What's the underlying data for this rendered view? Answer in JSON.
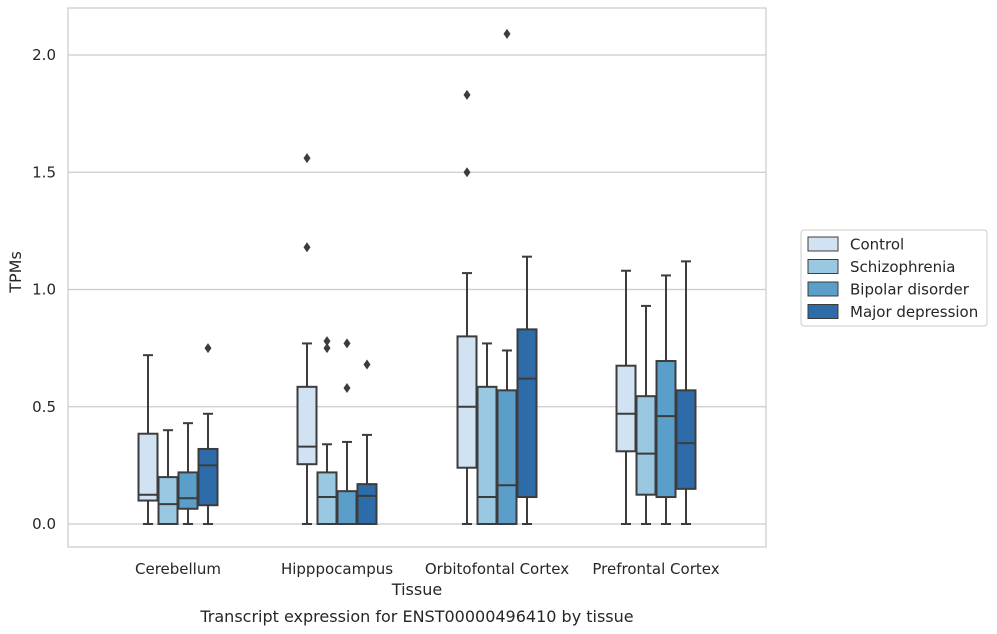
{
  "caption": "Transcript expression for ENST00000496410 by tissue",
  "chart_data": {
    "type": "boxplot",
    "xlabel": "Tissue",
    "ylabel": "TPMs",
    "ylim": [
      -0.1,
      2.2
    ],
    "yticks": [
      "0.0",
      "0.5",
      "1.0",
      "1.5",
      "2.0"
    ],
    "grid": true,
    "legend_position": "right",
    "categories": [
      "Cerebellum",
      "Hipppocampus",
      "Orbitofontal Cortex",
      "Prefrontal Cortex"
    ],
    "series": [
      {
        "name": "Control",
        "color": "#d1e2f2",
        "boxes": [
          {
            "whislo": 0.0,
            "q1": 0.1,
            "med": 0.125,
            "q3": 0.385,
            "whishi": 0.72,
            "fliers": []
          },
          {
            "whislo": 0.0,
            "q1": 0.255,
            "med": 0.33,
            "q3": 0.585,
            "whishi": 0.77,
            "fliers": [
              1.18,
              1.56
            ]
          },
          {
            "whislo": 0.0,
            "q1": 0.24,
            "med": 0.5,
            "q3": 0.8,
            "whishi": 1.07,
            "fliers": [
              1.5,
              1.83
            ]
          },
          {
            "whislo": 0.0,
            "q1": 0.31,
            "med": 0.47,
            "q3": 0.675,
            "whishi": 1.08,
            "fliers": []
          }
        ]
      },
      {
        "name": "Schizophrenia",
        "color": "#9ac8e0",
        "boxes": [
          {
            "whislo": 0.0,
            "q1": 0.0,
            "med": 0.085,
            "q3": 0.2,
            "whishi": 0.4,
            "fliers": []
          },
          {
            "whislo": 0.0,
            "q1": 0.0,
            "med": 0.115,
            "q3": 0.22,
            "whishi": 0.34,
            "fliers": [
              0.75,
              0.78
            ]
          },
          {
            "whislo": 0.0,
            "q1": 0.0,
            "med": 0.115,
            "q3": 0.585,
            "whishi": 0.77,
            "fliers": []
          },
          {
            "whislo": 0.0,
            "q1": 0.125,
            "med": 0.3,
            "q3": 0.545,
            "whishi": 0.93,
            "fliers": []
          }
        ]
      },
      {
        "name": "Bipolar disorder",
        "color": "#5a9ec9",
        "boxes": [
          {
            "whislo": 0.0,
            "q1": 0.065,
            "med": 0.11,
            "q3": 0.22,
            "whishi": 0.43,
            "fliers": []
          },
          {
            "whislo": 0.0,
            "q1": 0.0,
            "med": 0.0,
            "q3": 0.14,
            "whishi": 0.35,
            "fliers": [
              0.58,
              0.77
            ]
          },
          {
            "whislo": 0.0,
            "q1": 0.0,
            "med": 0.165,
            "q3": 0.57,
            "whishi": 0.74,
            "fliers": [
              2.09
            ]
          },
          {
            "whislo": 0.0,
            "q1": 0.115,
            "med": 0.46,
            "q3": 0.695,
            "whishi": 1.06,
            "fliers": []
          }
        ]
      },
      {
        "name": "Major depression",
        "color": "#2d6ca9",
        "boxes": [
          {
            "whislo": 0.0,
            "q1": 0.08,
            "med": 0.25,
            "q3": 0.32,
            "whishi": 0.47,
            "fliers": [
              0.75
            ]
          },
          {
            "whislo": 0.0,
            "q1": 0.0,
            "med": 0.12,
            "q3": 0.17,
            "whishi": 0.38,
            "fliers": [
              0.68
            ]
          },
          {
            "whislo": 0.0,
            "q1": 0.115,
            "med": 0.62,
            "q3": 0.83,
            "whishi": 1.14,
            "fliers": []
          },
          {
            "whislo": 0.0,
            "q1": 0.15,
            "med": 0.345,
            "q3": 0.57,
            "whishi": 1.12,
            "fliers": []
          }
        ]
      }
    ]
  }
}
